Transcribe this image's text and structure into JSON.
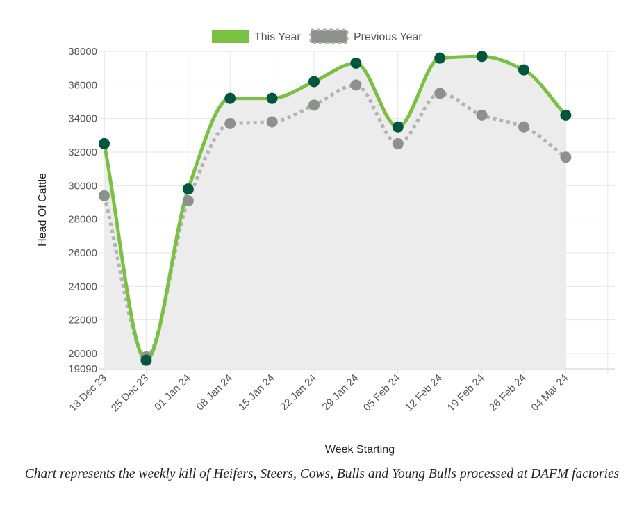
{
  "chart_data": {
    "type": "line",
    "categories": [
      "18 Dec 23",
      "25 Dec 23",
      "01 Jan 24",
      "08 Jan 24",
      "15 Jan 24",
      "22 Jan 24",
      "29 Jan 24",
      "05 Feb 24",
      "12 Feb 24",
      "19 Feb 24",
      "26 Feb 24",
      "04 Mar 24"
    ],
    "series": [
      {
        "name": "This Year",
        "color": "#7ac143",
        "marker_color": "#00573f",
        "style": "solid",
        "values": [
          32500,
          19600,
          29800,
          35200,
          35200,
          36200,
          37300,
          33500,
          37600,
          37700,
          36900,
          34200
        ]
      },
      {
        "name": "Previous Year",
        "color": "#b3b3b3",
        "marker_color": "#8c918e",
        "style": "dotted",
        "fill": "#ececec",
        "values": [
          29400,
          19800,
          29100,
          33700,
          33800,
          34800,
          36000,
          32500,
          35500,
          34200,
          33500,
          31700
        ]
      }
    ],
    "xlabel": "Week Starting",
    "ylabel": "Head Of Cattle",
    "ylim": [
      19090,
      38000
    ],
    "yticks": [
      19090,
      20000,
      22000,
      24000,
      26000,
      28000,
      30000,
      32000,
      34000,
      36000,
      38000
    ],
    "legend": "top-center",
    "grid": true
  },
  "caption": "Chart represents the weekly kill of Heifers, Steers, Cows, Bulls and Young Bulls processed at DAFM factories"
}
